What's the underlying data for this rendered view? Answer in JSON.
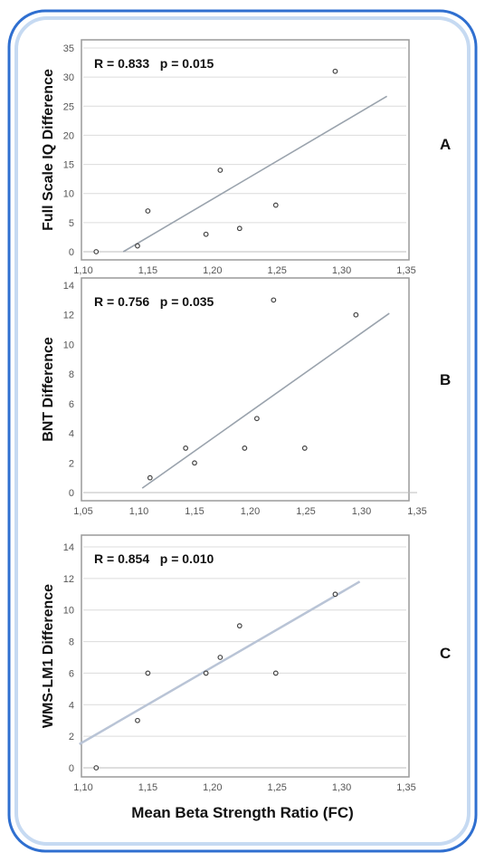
{
  "colors": {
    "frame_outer": "#2f6fd0",
    "frame_inner": "#c6daf2",
    "trend_line": "#9aa3ad",
    "trend_line_c": "#b9c4d6",
    "point": "#444444",
    "grid": "#dcdcdc"
  },
  "x_axis_label": "Mean Beta Strength Ratio (FC)",
  "chart_data": [
    {
      "id": "A",
      "type": "scatter",
      "panel_label": "A",
      "ylabel": "Full Scale IQ Difference",
      "stats": "R = 0.833   p = 0.015",
      "xlim": [
        1.1,
        1.35
      ],
      "ylim": [
        0,
        35
      ],
      "xticks": [
        1.1,
        1.15,
        1.2,
        1.25,
        1.3,
        1.35
      ],
      "xtick_labels": [
        "1,10",
        "1,15",
        "1,20",
        "1,25",
        "1,30",
        "1,35"
      ],
      "yticks": [
        0,
        5,
        10,
        15,
        20,
        25,
        30,
        35
      ],
      "ytick_labels": [
        "0",
        "5",
        "10",
        "15",
        "20",
        "25",
        "30",
        "35"
      ],
      "grid": "horizontal",
      "points": [
        {
          "x": 1.11,
          "y": 0
        },
        {
          "x": 1.142,
          "y": 1
        },
        {
          "x": 1.15,
          "y": 7
        },
        {
          "x": 1.195,
          "y": 3
        },
        {
          "x": 1.206,
          "y": 14
        },
        {
          "x": 1.221,
          "y": 4
        },
        {
          "x": 1.249,
          "y": 8
        },
        {
          "x": 1.295,
          "y": 31
        }
      ],
      "trend": {
        "x": [
          1.131,
          1.335
        ],
        "y": [
          0,
          26.7
        ]
      }
    },
    {
      "id": "B",
      "type": "scatter",
      "panel_label": "B",
      "ylabel": "BNT Difference",
      "stats": "R = 0.756   p = 0.035",
      "xlim": [
        1.05,
        1.35
      ],
      "ylim": [
        0,
        14
      ],
      "xticks": [
        1.05,
        1.1,
        1.15,
        1.2,
        1.25,
        1.3,
        1.35
      ],
      "xtick_labels": [
        "1,05",
        "1,10",
        "1,15",
        "1,20",
        "1,25",
        "1,30",
        "1,35"
      ],
      "yticks": [
        0,
        2,
        4,
        6,
        8,
        10,
        12,
        14
      ],
      "ytick_labels": [
        "0",
        "2",
        "4",
        "6",
        "8",
        "10",
        "12",
        "14"
      ],
      "grid": "none",
      "points": [
        {
          "x": 1.11,
          "y": 1
        },
        {
          "x": 1.142,
          "y": 3
        },
        {
          "x": 1.15,
          "y": 2
        },
        {
          "x": 1.195,
          "y": 3
        },
        {
          "x": 1.206,
          "y": 5
        },
        {
          "x": 1.221,
          "y": 13
        },
        {
          "x": 1.249,
          "y": 3
        },
        {
          "x": 1.295,
          "y": 12
        }
      ],
      "trend": {
        "x": [
          1.103,
          1.325
        ],
        "y": [
          0.3,
          12.1
        ]
      }
    },
    {
      "id": "C",
      "type": "scatter",
      "panel_label": "C",
      "ylabel": "WMS-LM1  Difference",
      "stats": "R = 0.854   p = 0.010",
      "xlim": [
        1.1,
        1.35
      ],
      "ylim": [
        0,
        14
      ],
      "xticks": [
        1.1,
        1.15,
        1.2,
        1.25,
        1.3,
        1.35
      ],
      "xtick_labels": [
        "1,10",
        "1,15",
        "1,20",
        "1,25",
        "1,30",
        "1,35"
      ],
      "yticks": [
        0,
        2,
        4,
        6,
        8,
        10,
        12,
        14
      ],
      "ytick_labels": [
        "0",
        "2",
        "4",
        "6",
        "8",
        "10",
        "12",
        "14"
      ],
      "grid": "horizontal",
      "points": [
        {
          "x": 1.11,
          "y": 0
        },
        {
          "x": 1.142,
          "y": 3
        },
        {
          "x": 1.15,
          "y": 6
        },
        {
          "x": 1.195,
          "y": 6
        },
        {
          "x": 1.206,
          "y": 7
        },
        {
          "x": 1.221,
          "y": 9
        },
        {
          "x": 1.249,
          "y": 6
        },
        {
          "x": 1.295,
          "y": 11
        }
      ],
      "trend": {
        "x": [
          1.097,
          1.314
        ],
        "y": [
          1.5,
          11.8
        ]
      }
    }
  ]
}
